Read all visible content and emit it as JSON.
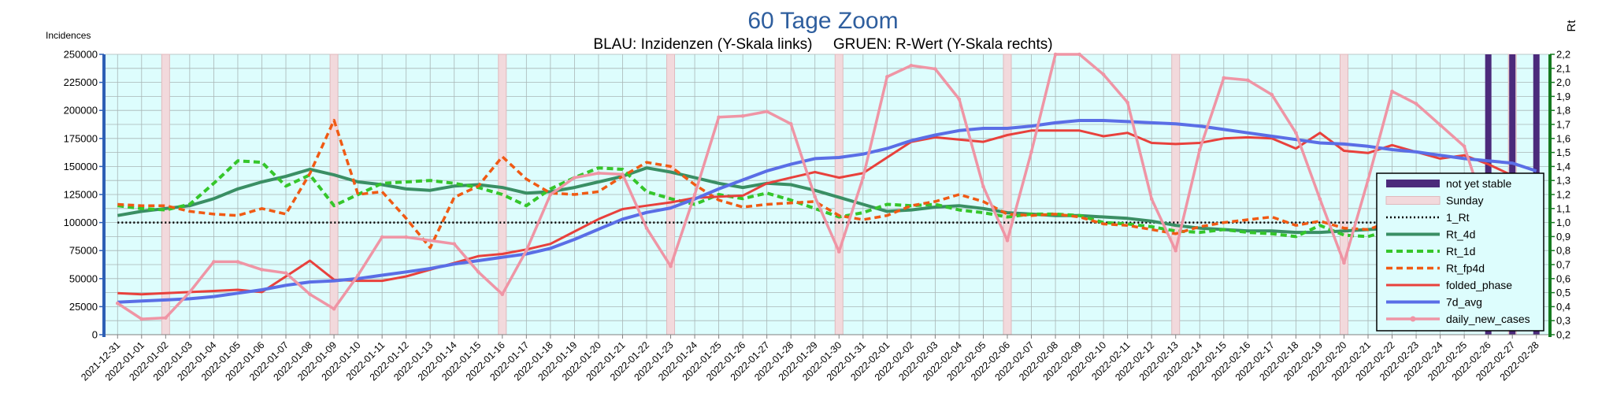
{
  "chart_data": {
    "type": "line",
    "title": "60 Tage Zoom",
    "subtitle": "BLAU: Inzidenzen (Y-Skala links)     GRUEN: R-Wert (Y-Skala rechts)",
    "ylabel_left": "Incidences",
    "ylabel_right": "Rt",
    "ylim_left": [
      0,
      250000
    ],
    "ylim_right": [
      0.2,
      2.2
    ],
    "yticks_left": [
      "0",
      "25000",
      "50000",
      "75000",
      "100000",
      "125000",
      "150000",
      "175000",
      "200000",
      "225000",
      "250000"
    ],
    "yticks_right": [
      "0,2",
      "0,3",
      "0,4",
      "0,5",
      "0,6",
      "0,7",
      "0,8",
      "0,9",
      "1,0",
      "1,1",
      "1,2",
      "1,3",
      "1,4",
      "1,5",
      "1,6",
      "1,7",
      "1,8",
      "1,9",
      "2,0",
      "2,1",
      "2,2"
    ],
    "grid": true,
    "legend_position": "right",
    "x": [
      "2021-12-31",
      "2022-01-01",
      "2022-01-02",
      "2022-01-03",
      "2022-01-04",
      "2022-01-05",
      "2022-01-06",
      "2022-01-07",
      "2022-01-08",
      "2022-01-09",
      "2022-01-10",
      "2022-01-11",
      "2022-01-12",
      "2022-01-13",
      "2022-01-14",
      "2022-01-15",
      "2022-01-16",
      "2022-01-17",
      "2022-01-18",
      "2022-01-19",
      "2022-01-20",
      "2022-01-21",
      "2022-01-22",
      "2022-01-23",
      "2022-01-24",
      "2022-01-25",
      "2022-01-26",
      "2022-01-27",
      "2022-01-28",
      "2022-01-29",
      "2022-01-30",
      "2022-01-31",
      "2022-02-01",
      "2022-02-02",
      "2022-02-03",
      "2022-02-04",
      "2022-02-05",
      "2022-02-06",
      "2022-02-07",
      "2022-02-08",
      "2022-02-09",
      "2022-02-10",
      "2022-02-11",
      "2022-02-12",
      "2022-02-13",
      "2022-02-14",
      "2022-02-15",
      "2022-02-16",
      "2022-02-17",
      "2022-02-18",
      "2022-02-19",
      "2022-02-20",
      "2022-02-21",
      "2022-02-22",
      "2022-02-23",
      "2022-02-24",
      "2022-02-25",
      "2022-02-26",
      "2022-02-27",
      "2022-02-28"
    ],
    "sundays": [
      "2022-01-02",
      "2022-01-09",
      "2022-01-16",
      "2022-01-23",
      "2022-01-30",
      "2022-02-06",
      "2022-02-13",
      "2022-02-20",
      "2022-02-27"
    ],
    "not_yet_stable": [
      "2022-02-26",
      "2022-02-27",
      "2022-02-28"
    ],
    "series": [
      {
        "name": "not yet stable",
        "kind": "legend-bar",
        "color": "#4b2a7b"
      },
      {
        "name": "Sunday",
        "kind": "legend-bar",
        "color": "#f2d9dc"
      },
      {
        "name": "1_Rt",
        "axis": "right",
        "kind": "line",
        "color": "#000000",
        "dash": "dotted",
        "values": [
          1.0,
          1.0,
          1.0,
          1.0,
          1.0,
          1.0,
          1.0,
          1.0,
          1.0,
          1.0,
          1.0,
          1.0,
          1.0,
          1.0,
          1.0,
          1.0,
          1.0,
          1.0,
          1.0,
          1.0,
          1.0,
          1.0,
          1.0,
          1.0,
          1.0,
          1.0,
          1.0,
          1.0,
          1.0,
          1.0,
          1.0,
          1.0,
          1.0,
          1.0,
          1.0,
          1.0,
          1.0,
          1.0,
          1.0,
          1.0,
          1.0,
          1.0,
          1.0,
          1.0,
          1.0,
          1.0,
          1.0,
          1.0,
          1.0,
          1.0,
          1.0,
          1.0,
          1.0,
          1.0,
          1.0,
          1.0,
          1.0,
          1.0,
          1.0,
          1.0
        ]
      },
      {
        "name": "Rt_4d",
        "axis": "right",
        "kind": "line",
        "color": "#3a8f64",
        "values": [
          1.05,
          1.08,
          1.1,
          1.12,
          1.17,
          1.24,
          1.29,
          1.33,
          1.38,
          1.34,
          1.29,
          1.27,
          1.24,
          1.23,
          1.26,
          1.27,
          1.25,
          1.21,
          1.22,
          1.25,
          1.29,
          1.33,
          1.39,
          1.36,
          1.32,
          1.28,
          1.25,
          1.28,
          1.27,
          1.23,
          1.18,
          1.13,
          1.08,
          1.09,
          1.11,
          1.12,
          1.1,
          1.07,
          1.06,
          1.05,
          1.05,
          1.04,
          1.03,
          1.01,
          0.98,
          0.96,
          0.95,
          0.94,
          0.94,
          0.93,
          0.93,
          0.94,
          0.95,
          0.96,
          0.94,
          0.93,
          0.94,
          0.93,
          0.92,
          0.9
        ]
      },
      {
        "name": "Rt_1d",
        "axis": "right",
        "kind": "line",
        "color": "#35c62b",
        "dash": "dashed",
        "values": [
          1.12,
          1.1,
          1.09,
          1.13,
          1.28,
          1.44,
          1.43,
          1.26,
          1.34,
          1.12,
          1.2,
          1.28,
          1.29,
          1.3,
          1.28,
          1.25,
          1.2,
          1.12,
          1.24,
          1.32,
          1.39,
          1.38,
          1.22,
          1.17,
          1.13,
          1.2,
          1.17,
          1.21,
          1.16,
          1.1,
          1.04,
          1.07,
          1.13,
          1.12,
          1.13,
          1.09,
          1.07,
          1.04,
          1.06,
          1.06,
          1.05,
          1.0,
          0.99,
          0.97,
          0.94,
          0.93,
          0.95,
          0.93,
          0.92,
          0.9,
          0.98,
          0.91,
          0.9,
          0.95,
          0.92,
          0.91,
          0.95,
          0.87,
          0.86,
          0.79
        ]
      },
      {
        "name": "Rt_fp4d",
        "axis": "right",
        "kind": "line",
        "color": "#f05a14",
        "dash": "dashed",
        "values": [
          1.13,
          1.12,
          1.12,
          1.08,
          1.06,
          1.05,
          1.1,
          1.06,
          1.35,
          1.73,
          1.2,
          1.22,
          1.03,
          0.82,
          1.18,
          1.26,
          1.47,
          1.31,
          1.21,
          1.2,
          1.22,
          1.33,
          1.43,
          1.4,
          1.27,
          1.16,
          1.11,
          1.13,
          1.14,
          1.15,
          1.05,
          1.02,
          1.05,
          1.12,
          1.15,
          1.2,
          1.15,
          1.06,
          1.05,
          1.06,
          1.04,
          0.99,
          0.98,
          0.95,
          0.92,
          0.97,
          1.0,
          1.02,
          1.04,
          0.98,
          1.01,
          0.96,
          0.95,
          1.01,
          0.91,
          0.93,
          0.98,
          0.89,
          0.87,
          0.72
        ]
      },
      {
        "name": "folded_phase",
        "axis": "left",
        "kind": "line",
        "color": "#e8413c",
        "values": [
          37000,
          36000,
          37000,
          38000,
          39000,
          40000,
          38000,
          52000,
          66000,
          49000,
          48000,
          48000,
          52000,
          58000,
          64000,
          70000,
          72000,
          76000,
          81000,
          92000,
          103000,
          112000,
          115000,
          118000,
          122000,
          123000,
          124000,
          135000,
          140000,
          145000,
          140000,
          144000,
          158000,
          172000,
          176000,
          174000,
          172000,
          178000,
          182000,
          182000,
          182000,
          177000,
          180000,
          171000,
          170000,
          171000,
          175000,
          176000,
          175000,
          166000,
          180000,
          164000,
          162000,
          169000,
          163000,
          157000,
          160000,
          152000,
          142000,
          110000
        ]
      },
      {
        "name": "7d_avg",
        "axis": "left",
        "kind": "line",
        "color": "#5a6ee6",
        "values": [
          29000,
          30000,
          31000,
          32000,
          34000,
          37000,
          40000,
          44000,
          47000,
          48000,
          50000,
          53000,
          56000,
          59000,
          63000,
          66000,
          69000,
          72000,
          77000,
          85000,
          94000,
          103000,
          109000,
          113000,
          121000,
          130000,
          138000,
          146000,
          152000,
          157000,
          158000,
          161000,
          166000,
          173000,
          178000,
          182000,
          184000,
          184000,
          186000,
          189000,
          191000,
          191000,
          190000,
          189000,
          188000,
          186000,
          183000,
          180000,
          177000,
          174000,
          171000,
          170000,
          168000,
          165000,
          163000,
          160000,
          157000,
          155000,
          153000,
          146000
        ]
      },
      {
        "name": "daily_new_cases",
        "axis": "left",
        "kind": "line-marker",
        "color": "#ef95a5",
        "values": [
          28000,
          14000,
          15000,
          38000,
          65000,
          65000,
          58000,
          55000,
          36000,
          23000,
          53000,
          87000,
          87000,
          84000,
          81000,
          56000,
          36000,
          75000,
          125000,
          140000,
          144000,
          143000,
          95000,
          61000,
          125000,
          194000,
          195000,
          199000,
          188000,
          123000,
          74000,
          140000,
          230000,
          240000,
          237000,
          210000,
          132000,
          84000,
          163000,
          250000,
          250000,
          232000,
          207000,
          121000,
          75000,
          165000,
          229000,
          227000,
          214000,
          180000,
          121000,
          64000,
          138000,
          217000,
          206000,
          187000,
          168000,
          103000,
          49000,
          84000
        ]
      }
    ]
  }
}
